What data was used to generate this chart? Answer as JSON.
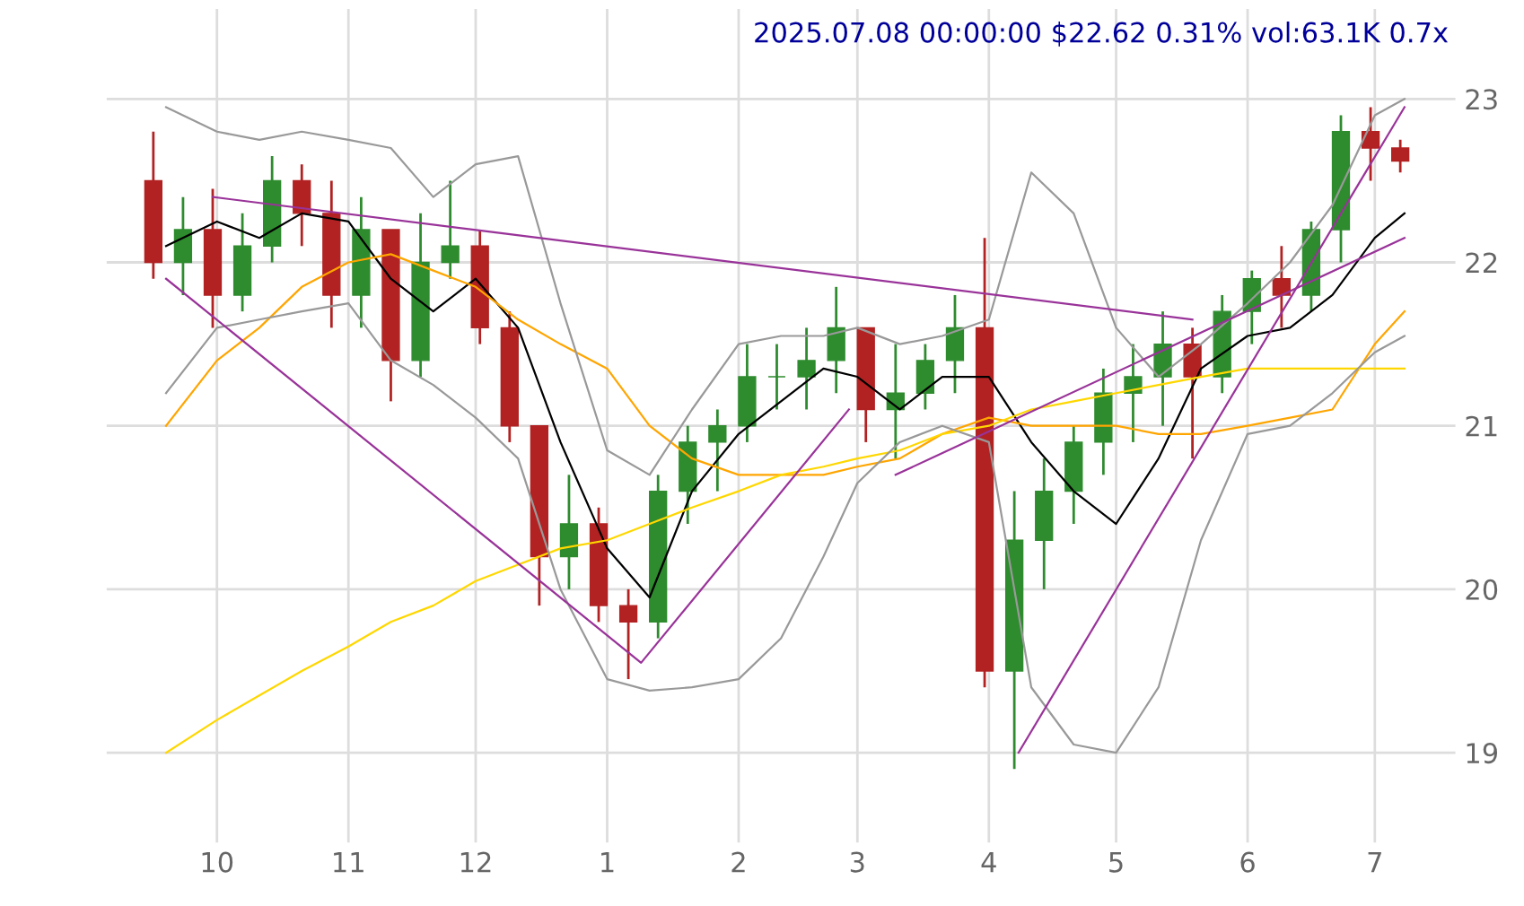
{
  "chart_data": {
    "type": "candlestick",
    "title": "2025.07.08 00:00:00 $22.62 0.31% vol:63.1K 0.7x",
    "x": [
      "2024-09-16",
      "2024-09-23",
      "2024-09-30",
      "2024-10-07",
      "2024-10-14",
      "2024-10-21",
      "2024-10-28",
      "2024-11-04",
      "2024-11-11",
      "2024-11-18",
      "2024-11-25",
      "2024-12-02",
      "2024-12-09",
      "2024-12-16",
      "2024-12-23",
      "2024-12-30",
      "2025-01-06",
      "2025-01-13",
      "2025-01-20",
      "2025-01-27",
      "2025-02-03",
      "2025-02-10",
      "2025-02-17",
      "2025-02-24",
      "2025-03-03",
      "2025-03-10",
      "2025-03-17",
      "2025-03-24",
      "2025-03-31",
      "2025-04-07",
      "2025-04-14",
      "2025-04-21",
      "2025-04-28",
      "2025-05-05",
      "2025-05-12",
      "2025-05-19",
      "2025-05-26",
      "2025-06-02",
      "2025-06-09",
      "2025-06-16",
      "2025-06-23",
      "2025-06-30",
      "2025-07-07"
    ],
    "ohlc": [
      [
        22.5,
        22.8,
        21.9,
        22.0
      ],
      [
        22.0,
        22.4,
        21.8,
        22.2
      ],
      [
        22.2,
        22.45,
        21.6,
        21.8
      ],
      [
        21.8,
        22.3,
        21.7,
        22.1
      ],
      [
        22.1,
        22.65,
        22.0,
        22.5
      ],
      [
        22.5,
        22.6,
        22.1,
        22.3
      ],
      [
        22.3,
        22.5,
        21.6,
        21.8
      ],
      [
        21.8,
        22.4,
        21.6,
        22.2
      ],
      [
        22.2,
        22.2,
        21.15,
        21.4
      ],
      [
        21.4,
        22.3,
        21.3,
        22.0
      ],
      [
        22.0,
        22.5,
        21.9,
        22.1
      ],
      [
        22.1,
        22.2,
        21.5,
        21.6
      ],
      [
        21.6,
        21.7,
        20.9,
        21.0
      ],
      [
        21.0,
        21.0,
        19.9,
        20.2
      ],
      [
        20.2,
        20.7,
        20.0,
        20.4
      ],
      [
        20.4,
        20.5,
        19.8,
        19.9
      ],
      [
        19.9,
        20.0,
        19.45,
        19.8
      ],
      [
        19.8,
        20.7,
        19.7,
        20.6
      ],
      [
        20.6,
        21.0,
        20.4,
        20.9
      ],
      [
        20.9,
        21.1,
        20.6,
        21.0
      ],
      [
        21.0,
        21.5,
        20.9,
        21.3
      ],
      [
        21.3,
        21.5,
        21.1,
        21.3
      ],
      [
        21.3,
        21.6,
        21.1,
        21.4
      ],
      [
        21.4,
        21.85,
        21.2,
        21.6
      ],
      [
        21.6,
        21.6,
        20.9,
        21.1
      ],
      [
        21.1,
        21.5,
        20.8,
        21.2
      ],
      [
        21.2,
        21.5,
        21.1,
        21.4
      ],
      [
        21.4,
        21.8,
        21.2,
        21.6
      ],
      [
        21.6,
        22.15,
        19.4,
        19.5
      ],
      [
        19.5,
        20.6,
        18.9,
        20.3
      ],
      [
        20.3,
        20.8,
        20.0,
        20.6
      ],
      [
        20.6,
        21.0,
        20.4,
        20.9
      ],
      [
        20.9,
        21.35,
        20.7,
        21.2
      ],
      [
        21.2,
        21.5,
        20.9,
        21.3
      ],
      [
        21.3,
        21.7,
        21.0,
        21.5
      ],
      [
        21.5,
        21.6,
        20.8,
        21.3
      ],
      [
        21.3,
        21.8,
        21.2,
        21.7
      ],
      [
        21.7,
        21.95,
        21.5,
        21.9
      ],
      [
        21.9,
        22.1,
        21.6,
        21.8
      ],
      [
        21.8,
        22.25,
        21.7,
        22.2
      ],
      [
        22.2,
        22.9,
        22.0,
        22.8
      ],
      [
        22.8,
        22.95,
        22.5,
        22.7
      ],
      [
        22.7,
        22.75,
        22.55,
        22.62
      ]
    ],
    "colors": [
      "#b22222",
      "#2e8b2e",
      "#b22222",
      "#2e8b2e",
      "#2e8b2e",
      "#b22222",
      "#b22222",
      "#2e8b2e",
      "#b22222",
      "#2e8b2e",
      "#2e8b2e",
      "#b22222",
      "#b22222",
      "#b22222",
      "#2e8b2e",
      "#b22222",
      "#b22222",
      "#2e8b2e",
      "#2e8b2e",
      "#2e8b2e",
      "#2e8b2e",
      "#2e8b2e",
      "#2e8b2e",
      "#2e8b2e",
      "#b22222",
      "#2e8b2e",
      "#2e8b2e",
      "#2e8b2e",
      "#b22222",
      "#2e8b2e",
      "#2e8b2e",
      "#2e8b2e",
      "#2e8b2e",
      "#2e8b2e",
      "#2e8b2e",
      "#b22222",
      "#2e8b2e",
      "#2e8b2e",
      "#b22222",
      "#2e8b2e",
      "#2e8b2e",
      "#b22222",
      "#b22222"
    ],
    "series": [
      {
        "type": "line",
        "color": "#000000",
        "x": [
          "2024-09-19",
          "2024-10-01",
          "2024-10-11",
          "2024-10-21",
          "2024-11-01",
          "2024-11-11",
          "2024-11-21",
          "2024-12-01",
          "2024-12-11",
          "2024-12-21",
          "2025-01-01",
          "2025-01-11",
          "2025-01-21",
          "2025-02-01",
          "2025-02-11",
          "2025-02-21",
          "2025-03-01",
          "2025-03-11",
          "2025-03-21",
          "2025-04-01",
          "2025-04-11",
          "2025-04-21",
          "2025-05-01",
          "2025-05-11",
          "2025-05-21",
          "2025-06-01",
          "2025-06-11",
          "2025-06-21",
          "2025-07-01",
          "2025-07-08"
        ],
        "values": [
          22.1,
          22.25,
          22.15,
          22.3,
          22.25,
          21.9,
          21.7,
          21.9,
          21.6,
          20.9,
          20.25,
          19.95,
          20.6,
          20.95,
          21.15,
          21.35,
          21.3,
          21.1,
          21.3,
          21.3,
          20.9,
          20.6,
          20.4,
          20.8,
          21.35,
          21.55,
          21.6,
          21.8,
          22.15,
          22.3
        ]
      },
      {
        "type": "line",
        "color": "#ffa500",
        "x": [
          "2024-09-19",
          "2024-10-01",
          "2024-10-11",
          "2024-10-21",
          "2024-11-01",
          "2024-11-11",
          "2024-11-21",
          "2024-12-01",
          "2024-12-11",
          "2024-12-21",
          "2025-01-01",
          "2025-01-11",
          "2025-01-21",
          "2025-02-01",
          "2025-02-11",
          "2025-02-21",
          "2025-03-01",
          "2025-03-11",
          "2025-03-21",
          "2025-04-01",
          "2025-04-11",
          "2025-04-21",
          "2025-05-01",
          "2025-05-11",
          "2025-05-21",
          "2025-06-01",
          "2025-06-11",
          "2025-06-21",
          "2025-07-01",
          "2025-07-08"
        ],
        "values": [
          21.0,
          21.4,
          21.6,
          21.85,
          22.0,
          22.05,
          21.95,
          21.85,
          21.65,
          21.5,
          21.35,
          21.0,
          20.8,
          20.7,
          20.7,
          20.7,
          20.75,
          20.8,
          20.95,
          21.05,
          21.0,
          21.0,
          21.0,
          20.95,
          20.95,
          21.0,
          21.05,
          21.1,
          21.5,
          21.7
        ]
      },
      {
        "type": "line",
        "color": "#ffd700",
        "x": [
          "2024-09-19",
          "2024-10-01",
          "2024-10-11",
          "2024-10-21",
          "2024-11-01",
          "2024-11-11",
          "2024-11-21",
          "2024-12-01",
          "2024-12-11",
          "2024-12-21",
          "2025-01-01",
          "2025-01-11",
          "2025-01-21",
          "2025-02-01",
          "2025-02-11",
          "2025-02-21",
          "2025-03-01",
          "2025-03-11",
          "2025-03-21",
          "2025-04-01",
          "2025-04-11",
          "2025-04-21",
          "2025-05-01",
          "2025-05-11",
          "2025-05-21",
          "2025-06-01",
          "2025-06-11",
          "2025-06-21",
          "2025-07-01",
          "2025-07-08"
        ],
        "values": [
          19.0,
          19.2,
          19.35,
          19.5,
          19.65,
          19.8,
          19.9,
          20.05,
          20.15,
          20.25,
          20.3,
          20.4,
          20.5,
          20.6,
          20.7,
          20.75,
          20.8,
          20.85,
          20.95,
          21.0,
          21.1,
          21.15,
          21.2,
          21.25,
          21.3,
          21.35,
          21.35,
          21.35,
          21.35,
          21.35
        ]
      },
      {
        "type": "line",
        "color": "#999999",
        "x": [
          "2024-09-19",
          "2024-10-01",
          "2024-10-11",
          "2024-10-21",
          "2024-11-01",
          "2024-11-11",
          "2024-11-21",
          "2024-12-01",
          "2024-12-11",
          "2024-12-21",
          "2025-01-01",
          "2025-01-11",
          "2025-01-21",
          "2025-02-01",
          "2025-02-11",
          "2025-02-21",
          "2025-03-01",
          "2025-03-11",
          "2025-03-21",
          "2025-04-01",
          "2025-04-11",
          "2025-04-21",
          "2025-05-01",
          "2025-05-11",
          "2025-05-21",
          "2025-06-01",
          "2025-06-11",
          "2025-06-21",
          "2025-07-01",
          "2025-07-08"
        ],
        "values": [
          22.95,
          22.8,
          22.75,
          22.8,
          22.75,
          22.7,
          22.4,
          22.6,
          22.65,
          21.75,
          20.85,
          20.7,
          21.1,
          21.5,
          21.55,
          21.55,
          21.6,
          21.5,
          21.55,
          21.65,
          22.55,
          22.3,
          21.6,
          21.3,
          21.5,
          21.75,
          22.0,
          22.35,
          22.9,
          23.0
        ]
      },
      {
        "type": "line",
        "color": "#999999",
        "x": [
          "2024-09-19",
          "2024-10-01",
          "2024-10-11",
          "2024-10-21",
          "2024-11-01",
          "2024-11-11",
          "2024-11-21",
          "2024-12-01",
          "2024-12-11",
          "2024-12-21",
          "2025-01-01",
          "2025-01-11",
          "2025-01-21",
          "2025-02-01",
          "2025-02-11",
          "2025-02-21",
          "2025-03-01",
          "2025-03-11",
          "2025-03-21",
          "2025-04-01",
          "2025-04-11",
          "2025-04-21",
          "2025-05-01",
          "2025-05-11",
          "2025-05-21",
          "2025-06-01",
          "2025-06-11",
          "2025-06-21",
          "2025-07-01",
          "2025-07-08"
        ],
        "values": [
          21.2,
          21.6,
          21.65,
          21.7,
          21.75,
          21.4,
          21.25,
          21.05,
          20.8,
          20.0,
          19.45,
          19.38,
          19.4,
          19.45,
          19.7,
          20.2,
          20.65,
          20.9,
          21.0,
          20.9,
          19.4,
          19.05,
          19.0,
          19.4,
          20.3,
          20.95,
          21.0,
          21.2,
          21.45,
          21.55
        ]
      },
      {
        "type": "line",
        "color": "#993399",
        "x": [
          "2024-09-30",
          "2025-05-19"
        ],
        "values": [
          22.4,
          21.65
        ]
      },
      {
        "type": "line",
        "color": "#993399",
        "x": [
          "2024-09-19",
          "2025-01-09",
          "2025-02-27"
        ],
        "values": [
          21.9,
          19.55,
          21.1
        ]
      },
      {
        "type": "line",
        "color": "#993399",
        "x": [
          "2025-04-08",
          "2025-07-08"
        ],
        "values": [
          19.0,
          22.95
        ]
      },
      {
        "type": "line",
        "color": "#993399",
        "x": [
          "2025-03-10",
          "2025-07-08"
        ],
        "values": [
          20.7,
          22.15
        ]
      }
    ],
    "xlim": [
      "2024-09-05",
      "2025-07-20"
    ],
    "xticks": [
      {
        "value": "2024-10-01",
        "label": "10"
      },
      {
        "value": "2024-11-01",
        "label": "11"
      },
      {
        "value": "2024-12-01",
        "label": "12"
      },
      {
        "value": "2025-01-01",
        "label": "1"
      },
      {
        "value": "2025-02-01",
        "label": "2"
      },
      {
        "value": "2025-03-01",
        "label": "3"
      },
      {
        "value": "2025-04-01",
        "label": "4"
      },
      {
        "value": "2025-05-01",
        "label": "5"
      },
      {
        "value": "2025-06-01",
        "label": "6"
      },
      {
        "value": "2025-07-01",
        "label": "7"
      }
    ],
    "ylim": [
      18.45,
      23.55
    ],
    "yticks": [
      19,
      20,
      21,
      22,
      23
    ],
    "grid": true
  }
}
